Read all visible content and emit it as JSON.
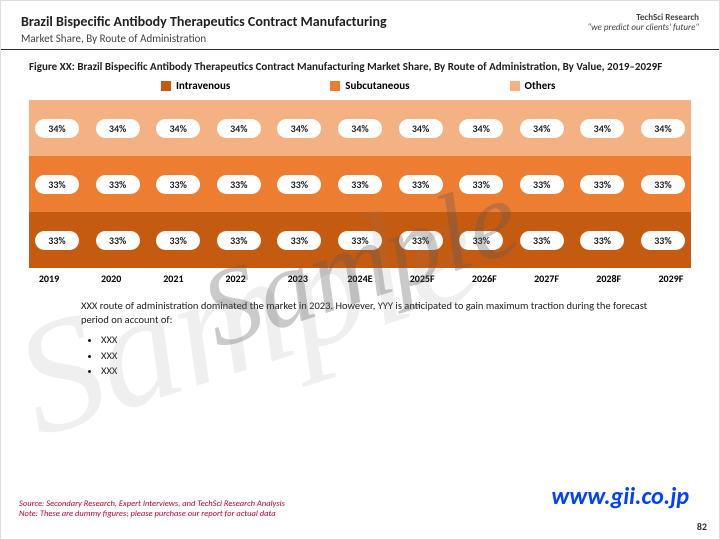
{
  "header": {
    "title": "Brazil Bispecific Antibody Therapeutics Contract Manufacturing",
    "subtitle": "Market Share, By Route of Administration",
    "logo_top": "TechSci Research",
    "logo_sub": "\"we predict our clients' future\""
  },
  "figure_caption": "Figure XX: Brazil Bispecific Antibody Therapeutics Contract Manufacturing Market Share, By Route of Administration, By Value, 2019–2029F",
  "legend": [
    {
      "label": "Intravenous",
      "color": "#c55a11"
    },
    {
      "label": "Subcutaneous",
      "color": "#ed7d31"
    },
    {
      "label": "Others",
      "color": "#f4b183"
    }
  ],
  "chart": {
    "type": "stacked-bar-horizontal",
    "years": [
      "2019",
      "2020",
      "2021",
      "2022",
      "2023",
      "2024E",
      "2025F",
      "2026F",
      "2027F",
      "2028F",
      "2029F"
    ],
    "bands": [
      {
        "name": "Others",
        "color": "#f4b183",
        "values": [
          "34%",
          "34%",
          "34%",
          "34%",
          "34%",
          "34%",
          "34%",
          "34%",
          "34%",
          "34%",
          "34%"
        ]
      },
      {
        "name": "Subcutaneous",
        "color": "#ed7d31",
        "values": [
          "33%",
          "33%",
          "33%",
          "33%",
          "33%",
          "33%",
          "33%",
          "33%",
          "33%",
          "33%",
          "33%"
        ]
      },
      {
        "name": "Intravenous",
        "color": "#c55a11",
        "values": [
          "33%",
          "33%",
          "33%",
          "33%",
          "33%",
          "33%",
          "33%",
          "33%",
          "33%",
          "33%",
          "33%"
        ]
      }
    ],
    "label_bg": "#ffffff",
    "label_fontsize": 10
  },
  "body": {
    "para": "XXX route of administration dominated the market in 2023. However, YYY is anticipated to gain maximum traction during the forecast period on account of:",
    "bullets": [
      "XXX",
      "XXX",
      "XXX"
    ]
  },
  "source": {
    "line1": "Source: Secondary Research, Expert Interviews, and TechSci Research Analysis",
    "line2": "Note: These are dummy figures; please purchase our report for actual data"
  },
  "watermark": "Sample",
  "url": "www.gii.co.jp",
  "page_number": "82"
}
